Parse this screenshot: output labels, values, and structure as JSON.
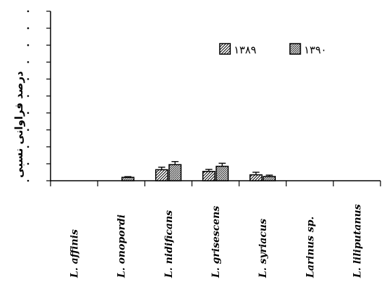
{
  "chart_data": {
    "type": "bar",
    "ylabel": "درصد فراوانی نسبی",
    "ylim": [
      0,
      10
    ],
    "ytick_count": 10,
    "categories": [
      "L. affinis",
      "L. onopordi",
      "L. nidificans",
      "L. grisescens",
      "L. syriacus",
      "Larinus sp.",
      "L. liliputanus"
    ],
    "series": [
      {
        "name": "۱۳۸۹",
        "pattern": "diagonal-hatch",
        "values": [
          0,
          0,
          0.65,
          0.55,
          0.35,
          0,
          0
        ],
        "errors": [
          0,
          0,
          0.15,
          0.12,
          0.15,
          0,
          0
        ]
      },
      {
        "name": "۱۳۹۰",
        "pattern": "crosshatch",
        "values": [
          0,
          0.2,
          0.95,
          0.85,
          0.25,
          0,
          0
        ],
        "errors": [
          0,
          0.04,
          0.18,
          0.18,
          0.08,
          0,
          0
        ]
      }
    ],
    "legend_position": "top-right",
    "grid": false
  }
}
